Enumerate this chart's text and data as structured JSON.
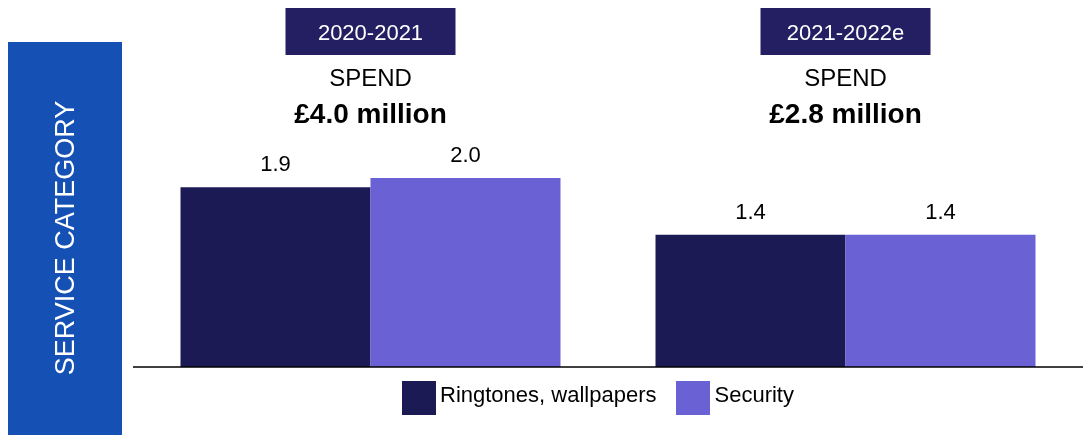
{
  "chart_data": {
    "type": "bar",
    "ylabel": "SERVICE CATEGORY",
    "categories": [
      "2020-2021",
      "2021-2022e"
    ],
    "series": [
      {
        "name": "Ringtones, wallpapers",
        "color": "#1c1a55",
        "values": [
          1.9,
          1.4
        ],
        "value_labels": [
          "1.9",
          "1.4"
        ]
      },
      {
        "name": "Security",
        "color": "#6a62d4",
        "values": [
          2.0,
          1.4
        ],
        "value_labels": [
          "2.0",
          "1.4"
        ]
      }
    ],
    "annotations": [
      "SPEND",
      "£4.0 million",
      "SPEND",
      "£2.8 million"
    ],
    "legend": "bottom"
  }
}
